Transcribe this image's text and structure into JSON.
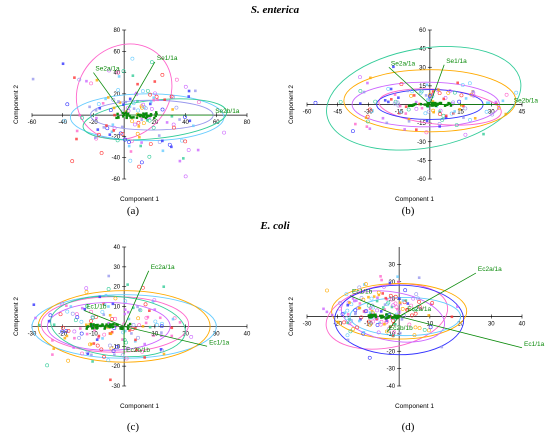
{
  "rows": [
    {
      "title": "S. enterica"
    },
    {
      "title": "E. coli"
    }
  ],
  "series_colors": [
    "#3333ff",
    "#9999ee",
    "#ff66cc",
    "#ff3333",
    "#33cc99",
    "#66ccff",
    "#ffaa00",
    "#cc66ff",
    "#0a8a0a"
  ],
  "chart_data": [
    {
      "panel": "(a)",
      "type": "scatter",
      "xlabel": "Component 1",
      "ylabel": "Component 2",
      "xlim": [
        -60,
        80
      ],
      "ylim": [
        -60,
        80
      ],
      "xticks": [
        -60,
        -40,
        -20,
        20,
        40,
        60,
        80
      ],
      "yticks": [
        -60,
        -40,
        -20,
        20,
        40,
        60,
        80
      ],
      "loadings": [
        {
          "label": "Se2a/1a",
          "x": -20,
          "y": 40
        },
        {
          "label": "Se1/1a",
          "x": 20,
          "y": 50
        },
        {
          "label": "Se2b/1a",
          "x": 58,
          "y": 0
        }
      ],
      "ellipses": [
        {
          "cx": 0,
          "cy": 22,
          "rx": 33,
          "ry": 42,
          "rot": -45,
          "color": "#ff66cc"
        },
        {
          "cx": 15,
          "cy": -2,
          "rx": 50,
          "ry": 22,
          "rot": 0,
          "color": "#66ccff"
        },
        {
          "cx": 20,
          "cy": -4,
          "rx": 47,
          "ry": 18,
          "rot": -6,
          "color": "#33cc99"
        },
        {
          "cx": 18,
          "cy": 0,
          "rx": 40,
          "ry": 14,
          "rot": 0,
          "color": "#9999ee"
        }
      ],
      "cluster": {
        "cx": 8,
        "cy": 2,
        "sx": 22,
        "sy": 22,
        "n": 150
      }
    },
    {
      "panel": "(b)",
      "type": "scatter",
      "xlabel": "Component 1",
      "ylabel": "Component 2",
      "xlim": [
        -60,
        45
      ],
      "ylim": [
        -60,
        60
      ],
      "xticks": [
        -60,
        -45,
        -30,
        -15,
        15,
        30,
        45
      ],
      "yticks": [
        -60,
        -45,
        -30,
        -15,
        15,
        30,
        45,
        60
      ],
      "loadings": [
        {
          "label": "Se2a/1a",
          "x": -20,
          "y": 30
        },
        {
          "label": "Se1/1a",
          "x": 7,
          "y": 32
        },
        {
          "label": "Se2b/1a",
          "x": 40,
          "y": 0
        }
      ],
      "ellipses": [
        {
          "cx": -3,
          "cy": 5,
          "rx": 48,
          "ry": 40,
          "rot": -10,
          "color": "#33cc99"
        },
        {
          "cx": 0,
          "cy": 3,
          "rx": 42,
          "ry": 25,
          "rot": 0,
          "color": "#ffaa00"
        },
        {
          "cx": -2,
          "cy": 0,
          "rx": 36,
          "ry": 18,
          "rot": 0,
          "color": "#cc66ff"
        },
        {
          "cx": 5,
          "cy": -2,
          "rx": 30,
          "ry": 14,
          "rot": 5,
          "color": "#ff66cc"
        },
        {
          "cx": 0,
          "cy": 0,
          "rx": 26,
          "ry": 12,
          "rot": 0,
          "color": "#3333ff"
        }
      ],
      "cluster": {
        "cx": 0,
        "cy": 0,
        "sx": 18,
        "sy": 10,
        "n": 130
      }
    },
    {
      "panel": "(c)",
      "type": "scatter",
      "xlabel": "Component 1",
      "ylabel": "Component 2",
      "xlim": [
        -30,
        40
      ],
      "ylim": [
        -30,
        40
      ],
      "xticks": [
        -30,
        -20,
        -10,
        10,
        20,
        30,
        40
      ],
      "yticks": [
        -30,
        -20,
        -10,
        10,
        20,
        30,
        40
      ],
      "loadings": [
        {
          "label": "Ec2a/1a",
          "x": 8,
          "y": 28
        },
        {
          "label": "Ec1/1b",
          "x": -13,
          "y": 8
        },
        {
          "label": "Ec1/1a",
          "x": 27,
          "y": -10
        },
        {
          "label": "Ec2b/1b",
          "x": 0,
          "y": -14
        }
      ],
      "ellipses": [
        {
          "cx": 0,
          "cy": 0,
          "rx": 30,
          "ry": 16,
          "rot": 0,
          "color": "#66ccff"
        },
        {
          "cx": 0,
          "cy": 0,
          "rx": 28,
          "ry": 18,
          "rot": 0,
          "color": "#ffaa00"
        },
        {
          "cx": -3,
          "cy": 1,
          "rx": 24,
          "ry": 14,
          "rot": 0,
          "color": "#ff66cc"
        },
        {
          "cx": -5,
          "cy": 0,
          "rx": 20,
          "ry": 12,
          "rot": 0,
          "color": "#cc66ff"
        },
        {
          "cx": -2,
          "cy": 0,
          "rx": 22,
          "ry": 15,
          "rot": 5,
          "color": "#33cc99"
        }
      ],
      "cluster": {
        "cx": -5,
        "cy": 0,
        "sx": 12,
        "sy": 10,
        "n": 160
      }
    },
    {
      "panel": "(d)",
      "type": "scatter",
      "xlabel": "Component 1",
      "ylabel": "Component 2",
      "xlim": [
        -30,
        40
      ],
      "ylim": [
        -40,
        40
      ],
      "xticks": [
        -30,
        -20,
        -10,
        10,
        20,
        30,
        40
      ],
      "yticks": [
        -40,
        -30,
        -20,
        -10,
        10,
        20,
        30
      ],
      "loadings": [
        {
          "label": "Ec2a/1a",
          "x": 25,
          "y": 25
        },
        {
          "label": "Ec1/1b",
          "x": -16,
          "y": 12
        },
        {
          "label": "Ec2a/1a",
          "x": 2,
          "y": 2
        },
        {
          "label": "Ec2b/1b",
          "x": -4,
          "y": -9
        },
        {
          "label": "Ec1/1a",
          "x": 40,
          "y": -18
        }
      ],
      "ellipses": [
        {
          "cx": -4,
          "cy": 0,
          "rx": 20,
          "ry": 18,
          "rot": -10,
          "color": "#ff66cc"
        },
        {
          "cx": 0,
          "cy": 3,
          "rx": 22,
          "ry": 16,
          "rot": 0,
          "color": "#ffaa00"
        },
        {
          "cx": -2,
          "cy": 0,
          "rx": 17,
          "ry": 14,
          "rot": 10,
          "color": "#cc66ff"
        },
        {
          "cx": 2,
          "cy": 0,
          "rx": 18,
          "ry": 11,
          "rot": 0,
          "color": "#66ccff"
        },
        {
          "cx": 0,
          "cy": -2,
          "rx": 21,
          "ry": 20,
          "rot": 0,
          "color": "#3333ff"
        }
      ],
      "cluster": {
        "cx": -5,
        "cy": 2,
        "sx": 9,
        "sy": 9,
        "n": 170
      }
    }
  ]
}
